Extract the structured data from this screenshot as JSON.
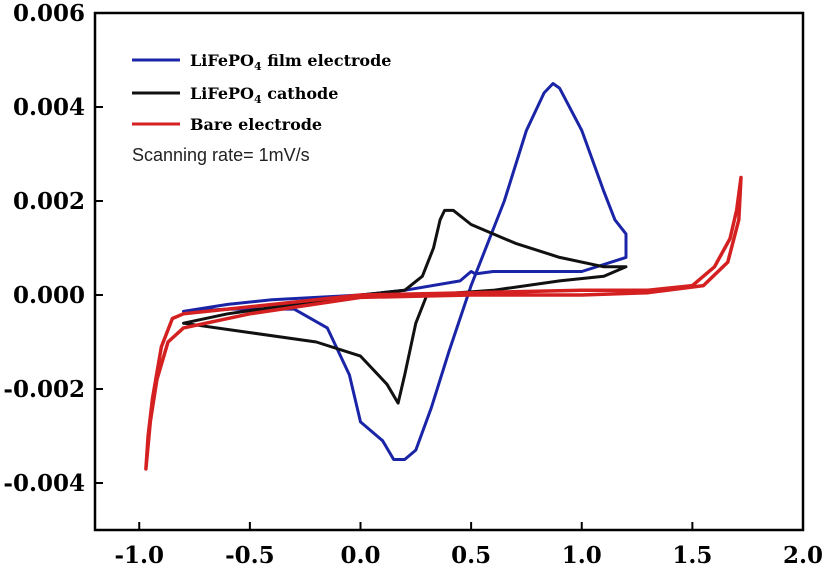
{
  "chart_data": {
    "type": "line",
    "title": "",
    "xlabel": "",
    "ylabel": "",
    "xlim": [
      -1.2,
      2.0
    ],
    "ylim": [
      -0.005,
      0.006
    ],
    "x_ticks": [
      -1.0,
      -0.5,
      0.0,
      0.5,
      1.0,
      1.5,
      2.0
    ],
    "x_tick_labels": [
      "-1.0",
      "-0.5",
      "0.0",
      "0.5",
      "1.0",
      "1.5",
      "2.0"
    ],
    "y_ticks": [
      -0.004,
      -0.002,
      0.0,
      0.002,
      0.004,
      0.006
    ],
    "y_tick_labels": [
      "-0.004",
      "-0.002",
      "0.000",
      "0.002",
      "0.004",
      "0.006"
    ],
    "grid": false,
    "legend_position": "top-left",
    "annotation": "Scanning rate= 1mV/s",
    "series": [
      {
        "name_main": "LiFePO",
        "name_sub": "4",
        "name_tail": " film electrode",
        "color": "#1a24a6",
        "points": [
          [
            -0.8,
            -0.00035
          ],
          [
            -0.6,
            -0.0002
          ],
          [
            -0.4,
            -0.0001
          ],
          [
            -0.2,
            -5e-05
          ],
          [
            0.0,
            0.0
          ],
          [
            0.2,
            0.0001
          ],
          [
            0.45,
            0.0003
          ],
          [
            0.5,
            0.0005
          ],
          [
            0.52,
            0.00045
          ],
          [
            0.6,
            0.0005
          ],
          [
            1.0,
            0.0005
          ],
          [
            1.2,
            0.0008
          ],
          [
            1.2,
            0.0013
          ],
          [
            1.15,
            0.0016
          ],
          [
            1.1,
            0.0022
          ],
          [
            1.0,
            0.0035
          ],
          [
            0.9,
            0.0044
          ],
          [
            0.87,
            0.0045
          ],
          [
            0.83,
            0.0043
          ],
          [
            0.75,
            0.0035
          ],
          [
            0.65,
            0.002
          ],
          [
            0.5,
            0.0002
          ],
          [
            0.4,
            -0.0012
          ],
          [
            0.32,
            -0.0024
          ],
          [
            0.25,
            -0.0033
          ],
          [
            0.2,
            -0.0035
          ],
          [
            0.15,
            -0.0035
          ],
          [
            0.1,
            -0.0031
          ],
          [
            0.0,
            -0.0027
          ],
          [
            -0.05,
            -0.0017
          ],
          [
            -0.15,
            -0.0007
          ],
          [
            -0.3,
            -0.0003
          ],
          [
            -0.6,
            -0.0003
          ],
          [
            -0.8,
            -0.00035
          ]
        ]
      },
      {
        "name_main": "LiFePO",
        "name_sub": "4",
        "name_tail": " cathode",
        "color": "#111111",
        "points": [
          [
            -0.8,
            -0.0006
          ],
          [
            -0.6,
            -0.0004
          ],
          [
            -0.3,
            -0.0002
          ],
          [
            0.0,
            0.0
          ],
          [
            0.2,
            0.0001
          ],
          [
            0.28,
            0.0004
          ],
          [
            0.33,
            0.001
          ],
          [
            0.36,
            0.0016
          ],
          [
            0.38,
            0.0018
          ],
          [
            0.42,
            0.0018
          ],
          [
            0.5,
            0.0015
          ],
          [
            0.7,
            0.0011
          ],
          [
            0.9,
            0.0008
          ],
          [
            1.1,
            0.0006
          ],
          [
            1.2,
            0.0006
          ],
          [
            1.1,
            0.0004
          ],
          [
            0.9,
            0.0003
          ],
          [
            0.6,
            0.0001
          ],
          [
            0.3,
            0.0
          ],
          [
            0.25,
            -0.0006
          ],
          [
            0.2,
            -0.0017
          ],
          [
            0.17,
            -0.0023
          ],
          [
            0.12,
            -0.0019
          ],
          [
            0.0,
            -0.0013
          ],
          [
            -0.2,
            -0.001
          ],
          [
            -0.5,
            -0.0008
          ],
          [
            -0.8,
            -0.0006
          ]
        ]
      },
      {
        "name_main": "Bare electrode",
        "name_sub": "",
        "name_tail": "",
        "color": "#d42020",
        "points": [
          [
            -0.97,
            -0.0037
          ],
          [
            -0.96,
            -0.003
          ],
          [
            -0.94,
            -0.0022
          ],
          [
            -0.9,
            -0.0011
          ],
          [
            -0.85,
            -0.0005
          ],
          [
            -0.8,
            -0.0004
          ],
          [
            -0.6,
            -0.0003
          ],
          [
            -0.3,
            -0.00015
          ],
          [
            0.0,
            0.0
          ],
          [
            0.5,
            5e-05
          ],
          [
            1.0,
            0.0001
          ],
          [
            1.3,
            0.0001
          ],
          [
            1.5,
            0.0002
          ],
          [
            1.6,
            0.0006
          ],
          [
            1.67,
            0.0012
          ],
          [
            1.7,
            0.0018
          ],
          [
            1.72,
            0.0025
          ],
          [
            1.71,
            0.0016
          ],
          [
            1.66,
            0.0007
          ],
          [
            1.55,
            0.0002
          ],
          [
            1.3,
            5e-05
          ],
          [
            1.0,
            0.0
          ],
          [
            0.5,
            0.0
          ],
          [
            0.0,
            -5e-05
          ],
          [
            -0.5,
            -0.0004
          ],
          [
            -0.8,
            -0.0007
          ],
          [
            -0.87,
            -0.001
          ],
          [
            -0.92,
            -0.0018
          ],
          [
            -0.95,
            -0.0027
          ],
          [
            -0.97,
            -0.0037
          ]
        ]
      }
    ]
  }
}
